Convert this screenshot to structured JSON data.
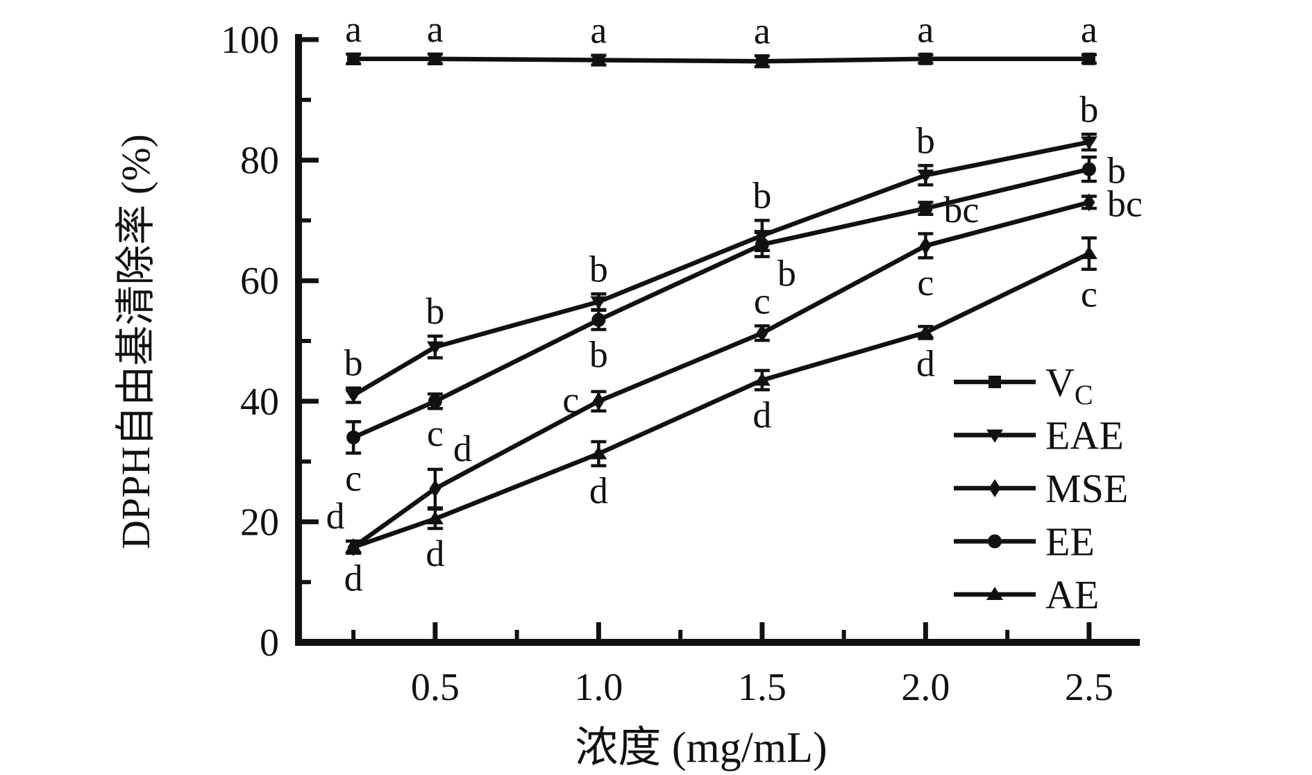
{
  "chart_data": {
    "type": "line",
    "title": "",
    "xlabel": "浓度 (mg/mL)",
    "ylabel": "DPPH自由基清除率 (%)",
    "grid": false,
    "legend_position": "right-middle",
    "xlim": [
      0.082,
      2.651
    ],
    "ylim": [
      0,
      100
    ],
    "x": [
      0.25,
      0.5,
      1.0,
      1.5,
      2.0,
      2.5
    ],
    "x_major_ticks": [
      0.5,
      1.0,
      1.5,
      2.0,
      2.5
    ],
    "x_major_tick_labels": [
      "0.5",
      "1.0",
      "1.5",
      "2.0",
      "2.5"
    ],
    "x_minor_ticks": [
      0.25,
      0.75,
      1.25,
      1.75,
      2.25
    ],
    "y_major_ticks": [
      0,
      20,
      40,
      60,
      80,
      100
    ],
    "y_major_tick_labels": [
      "0",
      "20",
      "40",
      "60",
      "80",
      "100"
    ],
    "y_minor_ticks": [
      10,
      30,
      50,
      70,
      90
    ],
    "line_color": "#111111",
    "series": [
      {
        "id": "vc",
        "legend": {
          "text": "V",
          "sub": "C"
        },
        "marker": "square",
        "values": [
          96.8,
          96.8,
          96.6,
          96.4,
          96.8,
          96.8
        ],
        "errors": [
          0.8,
          0.8,
          0.8,
          0.9,
          0.7,
          0.7
        ],
        "point_labels": [
          "a",
          "a",
          "a",
          "a",
          "a",
          "a"
        ],
        "label_pos": [
          "above",
          "above",
          "above",
          "above",
          "above",
          "above"
        ]
      },
      {
        "id": "eae",
        "legend": {
          "text": "EAE",
          "sub": ""
        },
        "marker": "triangle-down",
        "values": [
          41,
          49,
          56.5,
          67.5,
          77.5,
          83
        ],
        "errors": [
          1.2,
          1.8,
          1.3,
          2.5,
          1.6,
          1.3
        ],
        "point_labels": [
          "b",
          "b",
          "b",
          "b",
          "b",
          "b"
        ],
        "label_pos": [
          "above",
          "above",
          "above",
          "above",
          "above",
          "above"
        ]
      },
      {
        "id": "mse",
        "legend": {
          "text": "MSE",
          "sub": ""
        },
        "marker": "diamond",
        "values": [
          15.8,
          25.5,
          40,
          51.3,
          65.8,
          73
        ],
        "errors": [
          1.0,
          3.2,
          1.6,
          1.2,
          2.0,
          1.0
        ],
        "point_labels": [
          "d",
          "d",
          "c",
          "c",
          "c",
          "bc"
        ],
        "label_pos": [
          "above-left",
          "above-right",
          "left",
          "above",
          "below",
          "right"
        ]
      },
      {
        "id": "ee",
        "legend": {
          "text": "EE",
          "sub": ""
        },
        "marker": "circle",
        "values": [
          34,
          40,
          53.5,
          66,
          72,
          78.5
        ],
        "errors": [
          2.6,
          1.2,
          1.6,
          2.0,
          1.0,
          2.0
        ],
        "point_labels": [
          "c",
          "c",
          "b",
          "b",
          "bc",
          "b"
        ],
        "label_pos": [
          "below",
          "below",
          "below",
          "below-right",
          "right",
          "right"
        ]
      },
      {
        "id": "ae",
        "legend": {
          "text": "AE",
          "sub": ""
        },
        "marker": "triangle-up",
        "values": [
          15.8,
          20.5,
          31.3,
          43.5,
          51.4,
          64.5
        ],
        "errors": [
          1.0,
          1.6,
          2.0,
          1.6,
          1.0,
          2.6
        ],
        "point_labels": [
          "d",
          "d",
          "d",
          "d",
          "d",
          "c"
        ],
        "label_pos": [
          "below",
          "below",
          "below",
          "below",
          "below",
          "below"
        ]
      }
    ]
  }
}
